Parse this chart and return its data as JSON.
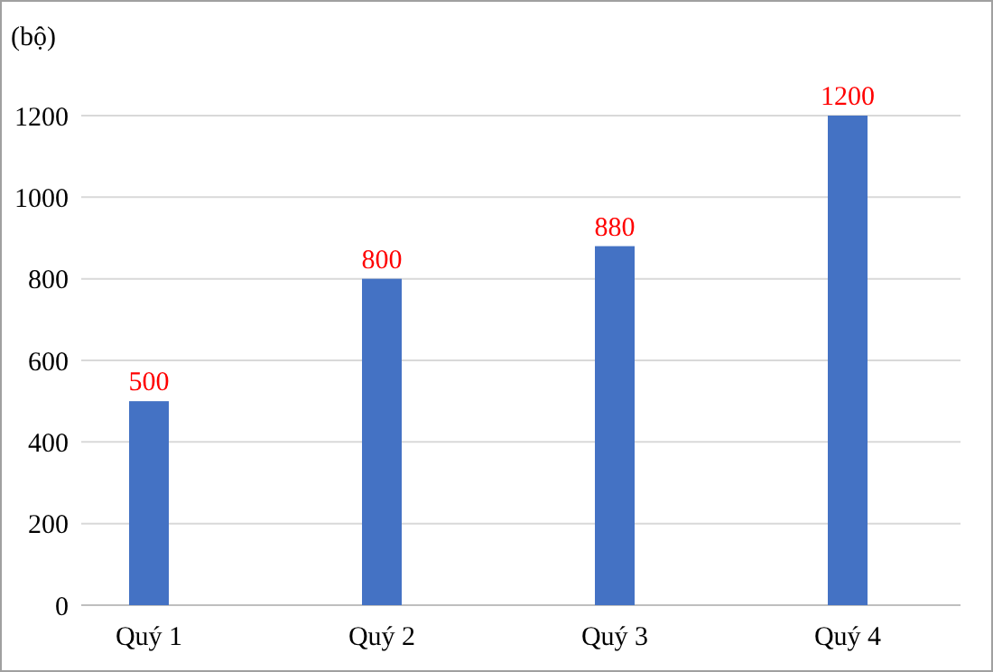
{
  "chart_data": {
    "type": "bar",
    "ylabel": "(bộ)",
    "categories": [
      "Quý 1",
      "Quý 2",
      "Quý 3",
      "Quý 4"
    ],
    "values": [
      500,
      800,
      880,
      1200
    ],
    "color": "#4472c4",
    "ylim": [
      0,
      1200
    ],
    "yticks": [
      0,
      200,
      400,
      600,
      800,
      1000,
      1200
    ],
    "grid": "y",
    "data_labels": true
  }
}
